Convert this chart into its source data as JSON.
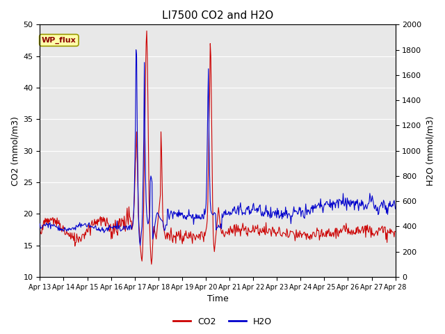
{
  "title": "LI7500 CO2 and H2O",
  "xlabel": "Time",
  "ylabel_left": "CO2 (mmol/m3)",
  "ylabel_right": "H2O (mmol/m3)",
  "legend_label": "WP_flux",
  "co2_color": "#CC0000",
  "h2o_color": "#0000CC",
  "background_color": "#E8E8E8",
  "ylim_left": [
    10,
    50
  ],
  "ylim_right": [
    0,
    2000
  ],
  "yticks_left": [
    10,
    15,
    20,
    25,
    30,
    35,
    40,
    45,
    50
  ],
  "yticks_right": [
    0,
    200,
    400,
    600,
    800,
    1000,
    1200,
    1400,
    1600,
    1800,
    2000
  ],
  "xtick_labels": [
    "Apr 13",
    "Apr 14",
    "Apr 15",
    "Apr 16",
    "Apr 17",
    "Apr 18",
    "Apr 19",
    "Apr 20",
    "Apr 21",
    "Apr 22",
    "Apr 23",
    "Apr 24",
    "Apr 25",
    "Apr 26",
    "Apr 27",
    "Apr 28"
  ],
  "figsize": [
    6.4,
    4.8
  ],
  "dpi": 100
}
